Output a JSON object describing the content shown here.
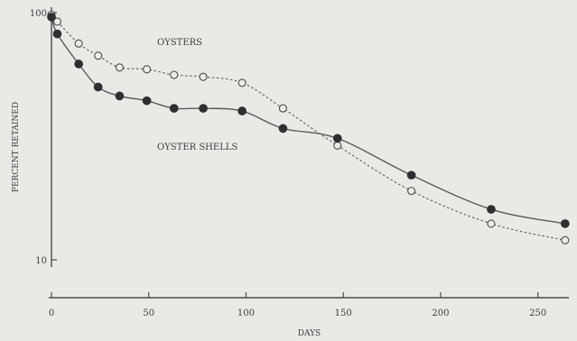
{
  "chart_data": {
    "type": "line",
    "xlabel": "DAYS",
    "ylabel": "PERCENT RETAINED",
    "xlim": [
      0,
      265
    ],
    "ylim": [
      10,
      100
    ],
    "yscale": "log",
    "x_ticks": [
      0,
      50,
      100,
      150,
      200,
      250
    ],
    "y_ticks": [
      10,
      100
    ],
    "grid": false,
    "series": [
      {
        "name": "OYSTERS",
        "style": "dotted",
        "marker": "open-circle",
        "color": "#5a5a5a",
        "x": [
          0,
          3,
          14,
          24,
          35,
          49,
          63,
          78,
          98,
          119,
          147,
          185,
          226,
          264
        ],
        "y": [
          98,
          92,
          75,
          67,
          60,
          59,
          56,
          55,
          52,
          41,
          29,
          19,
          14,
          12
        ]
      },
      {
        "name": "OYSTER SHELLS",
        "style": "solid",
        "marker": "filled-circle",
        "color": "#5a5a5a",
        "x": [
          0,
          3,
          14,
          24,
          35,
          49,
          63,
          78,
          98,
          119,
          147,
          185,
          226,
          264
        ],
        "y": [
          96,
          82,
          62,
          50,
          46,
          44,
          41,
          41,
          40,
          34,
          31,
          22,
          16,
          14
        ]
      }
    ]
  }
}
